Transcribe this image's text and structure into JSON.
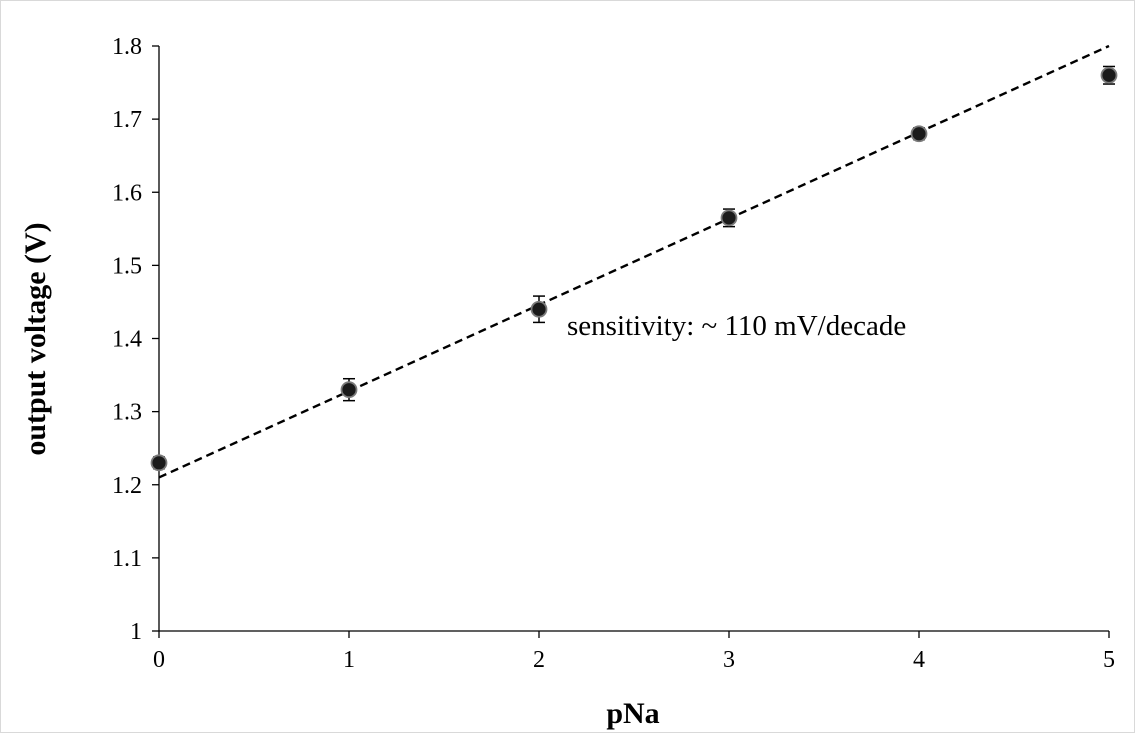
{
  "chart_data": {
    "type": "scatter",
    "xlabel": "pNa",
    "ylabel": "output voltage (V)",
    "xlim": [
      0,
      5
    ],
    "ylim": [
      1,
      1.8
    ],
    "x_ticks": [
      "0",
      "1",
      "2",
      "3",
      "4",
      "5"
    ],
    "y_ticks": [
      "1",
      "1.1",
      "1.2",
      "1.3",
      "1.4",
      "1.5",
      "1.6",
      "1.7",
      "1.8"
    ],
    "grid": false,
    "legend": "none",
    "series": [
      {
        "x": [
          0,
          1,
          2,
          3,
          4,
          5
        ],
        "y": [
          1.23,
          1.33,
          1.44,
          1.565,
          1.68,
          1.76
        ],
        "error": [
          0.008,
          0.015,
          0.018,
          0.012,
          0.008,
          0.012
        ],
        "marker_color": "#1a1a1a"
      }
    ],
    "trendline": {
      "style": "dashed",
      "color": "#000000",
      "x": [
        0,
        5
      ],
      "y": [
        1.21,
        1.8
      ]
    },
    "annotation": "sensitivity: ~ 110 mV/decade"
  }
}
